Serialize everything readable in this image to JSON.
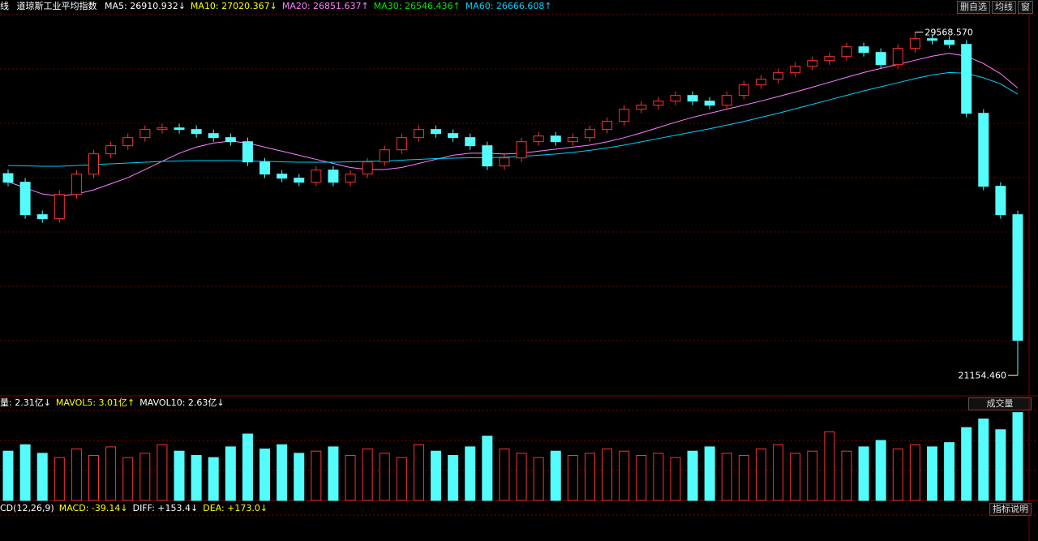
{
  "chart_data": {
    "type": "candlestick",
    "header": {
      "period": "线",
      "name": "道琼斯工业平均指数",
      "ma": [
        {
          "text": "MA5: 26910.932↓",
          "color": "#ffffff"
        },
        {
          "text": "MA10: 27020.367↓",
          "color": "#ffff00"
        },
        {
          "text": "MA20: 26851.637↑",
          "color": "#ff80ff"
        },
        {
          "text": "MA30: 26546.436↑",
          "color": "#00e600"
        },
        {
          "text": "MA60: 26666.608↑",
          "color": "#00d0ff"
        }
      ],
      "buttons": [
        "删自选",
        "均线",
        "窗"
      ]
    },
    "open": [
      26100,
      25889,
      25093,
      24994,
      25590,
      26088,
      26585,
      26784,
      26983,
      27182,
      27221,
      27182,
      27082,
      26983,
      26883,
      26386,
      26088,
      25988,
      25889,
      26187,
      25889,
      26088,
      26386,
      26684,
      26983,
      27182,
      27082,
      26983,
      26784,
      26287,
      26485,
      26883,
      27022,
      26883,
      26983,
      27182,
      27380,
      27679,
      27778,
      27878,
      28017,
      27878,
      27778,
      28017,
      28276,
      28415,
      28574,
      28733,
      28872,
      28972,
      29210,
      29071,
      28773,
      29171,
      29409,
      29370,
      29270,
      27579,
      25789,
      25093
    ],
    "high": [
      26200,
      25989,
      25193,
      25690,
      26188,
      26685,
      26884,
      27083,
      27282,
      27321,
      27321,
      27282,
      27182,
      27083,
      26983,
      26486,
      26188,
      26088,
      26287,
      26287,
      26188,
      26486,
      26784,
      27083,
      27282,
      27282,
      27182,
      27083,
      26884,
      26585,
      26983,
      27122,
      27122,
      27083,
      27282,
      27480,
      27779,
      27878,
      27978,
      28117,
      28117,
      27978,
      28117,
      28376,
      28515,
      28674,
      28833,
      28972,
      29072,
      29310,
      29310,
      29171,
      29271,
      29568.57,
      29509,
      29470,
      29370,
      27679,
      25889,
      25193
    ],
    "low": [
      25789,
      24993,
      24894,
      24894,
      25490,
      25988,
      26485,
      26684,
      26883,
      27082,
      27082,
      26982,
      26883,
      26783,
      26286,
      25988,
      25888,
      25789,
      25789,
      25789,
      25789,
      25988,
      26286,
      26584,
      26883,
      26982,
      26883,
      26684,
      26187,
      26187,
      26385,
      26783,
      26783,
      26783,
      26883,
      27082,
      27280,
      27579,
      27678,
      27778,
      27778,
      27678,
      27678,
      27917,
      28176,
      28315,
      28474,
      28633,
      28772,
      28872,
      28971,
      28673,
      28673,
      29071,
      29270,
      29170,
      27479,
      25689,
      24993,
      21154.46
    ],
    "close": [
      25889,
      25093,
      24994,
      25590,
      26088,
      26585,
      26784,
      26983,
      27182,
      27221,
      27182,
      27082,
      26983,
      26883,
      26386,
      26088,
      25988,
      25889,
      26187,
      25889,
      26088,
      26386,
      26684,
      26983,
      27182,
      27082,
      26983,
      26784,
      26287,
      26485,
      26883,
      27022,
      26883,
      26983,
      27182,
      27380,
      27679,
      27778,
      27878,
      28017,
      27878,
      27778,
      28017,
      28276,
      28415,
      28574,
      28733,
      28872,
      28972,
      29210,
      29071,
      28773,
      29171,
      29409,
      29370,
      29270,
      27579,
      25789,
      25093,
      22010
    ],
    "ylim": [
      20650,
      30000
    ],
    "up_color": "#ff3232",
    "down_color": "#54fcfc",
    "ma_lines": [
      {
        "name": "MA20",
        "color": "#ff80ff",
        "values": [
          25900,
          25750,
          25600,
          25550,
          25600,
          25700,
          25850,
          26000,
          26200,
          26400,
          26600,
          26750,
          26850,
          26900,
          26850,
          26750,
          26650,
          26550,
          26450,
          26350,
          26250,
          26200,
          26200,
          26250,
          26350,
          26450,
          26550,
          26600,
          26600,
          26580,
          26600,
          26650,
          26700,
          26750,
          26800,
          26880,
          26980,
          27100,
          27230,
          27360,
          27480,
          27580,
          27680,
          27780,
          27880,
          27990,
          28100,
          28220,
          28340,
          28460,
          28580,
          28680,
          28780,
          28880,
          28980,
          29050,
          28980,
          28800,
          28550,
          28200
        ]
      },
      {
        "name": "MA60",
        "color": "#00d0ff",
        "values": [
          26300,
          26290,
          26280,
          26280,
          26300,
          26320,
          26340,
          26360,
          26380,
          26400,
          26410,
          26420,
          26420,
          26420,
          26410,
          26400,
          26390,
          26380,
          26380,
          26380,
          26390,
          26400,
          26410,
          26430,
          26450,
          26470,
          26480,
          26490,
          26490,
          26500,
          26520,
          26550,
          26580,
          26620,
          26670,
          26730,
          26800,
          26880,
          26960,
          27040,
          27120,
          27200,
          27290,
          27380,
          27480,
          27580,
          27690,
          27800,
          27910,
          28020,
          28130,
          28230,
          28330,
          28430,
          28520,
          28580,
          28560,
          28450,
          28300,
          28050
        ]
      }
    ],
    "annotations": {
      "high_label": "29568.570",
      "low_label": "21154.460"
    },
    "volume": {
      "header": [
        {
          "text": "量: 2.31亿↓",
          "color": "#ffffff"
        },
        {
          "text": "MAVOL5: 3.01亿↑",
          "color": "#ffff00"
        },
        {
          "text": "MAVOL10: 2.63亿↓",
          "color": "#ffffff"
        }
      ],
      "selector": "成交量",
      "values": [
        2.3,
        2.6,
        2.2,
        2.0,
        2.4,
        2.1,
        2.5,
        2.0,
        2.2,
        2.6,
        2.3,
        2.1,
        2.0,
        2.5,
        3.1,
        2.4,
        2.6,
        2.2,
        2.3,
        2.5,
        2.1,
        2.4,
        2.2,
        2.0,
        2.6,
        2.3,
        2.1,
        2.5,
        3.0,
        2.4,
        2.2,
        2.0,
        2.3,
        2.1,
        2.2,
        2.4,
        2.3,
        2.1,
        2.2,
        2.0,
        2.3,
        2.5,
        2.2,
        2.1,
        2.4,
        2.6,
        2.2,
        2.3,
        3.2,
        2.3,
        2.5,
        2.8,
        2.4,
        2.6,
        2.5,
        2.7,
        3.4,
        3.8,
        3.3,
        4.1
      ],
      "ylim": [
        0,
        4.2
      ]
    },
    "macd": {
      "header": [
        {
          "text": "CD(12,26,9)",
          "color": "#ffffff"
        },
        {
          "text": "MACD: -39.14↓",
          "color": "#ffff00"
        },
        {
          "text": "DIFF: +153.4↓",
          "color": "#ffffff"
        },
        {
          "text": "DEA: +173.0↓",
          "color": "#ffff00"
        }
      ],
      "help": "指标说明"
    }
  }
}
